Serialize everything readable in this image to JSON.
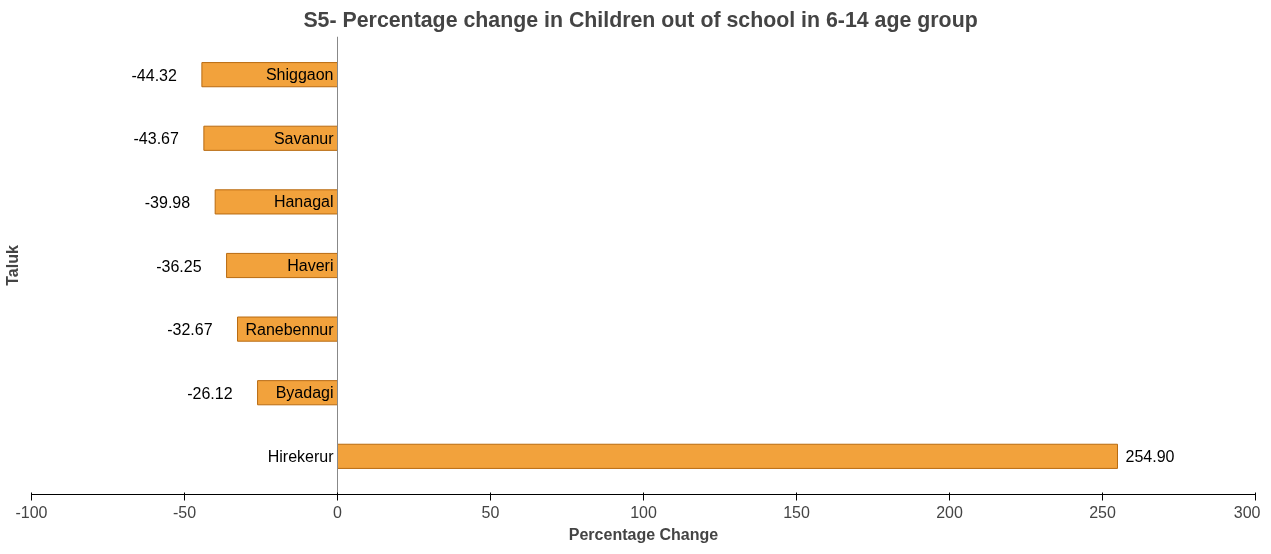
{
  "chart_data": {
    "type": "bar",
    "orientation": "horizontal",
    "title": "S5- Percentage change in Children out of school in  6-14 age group",
    "xlabel": "Percentage Change",
    "ylabel": "Taluk",
    "categories": [
      "Shiggaon",
      "Savanur",
      "Hanagal",
      "Haveri",
      "Ranebennur",
      "Byadagi",
      "Hirekerur"
    ],
    "values": [
      -44.32,
      -43.67,
      -39.98,
      -36.25,
      -32.67,
      -26.12,
      254.9
    ],
    "value_labels": [
      "-44.32",
      "-43.67",
      "-39.98",
      "-36.25",
      "-32.67",
      "-26.12",
      "254.90"
    ],
    "color": "#f2a23c",
    "xlim": [
      -100,
      300
    ],
    "xticks": [
      -100,
      -50,
      0,
      50,
      100,
      150,
      200,
      250,
      300
    ],
    "grid": false
  }
}
